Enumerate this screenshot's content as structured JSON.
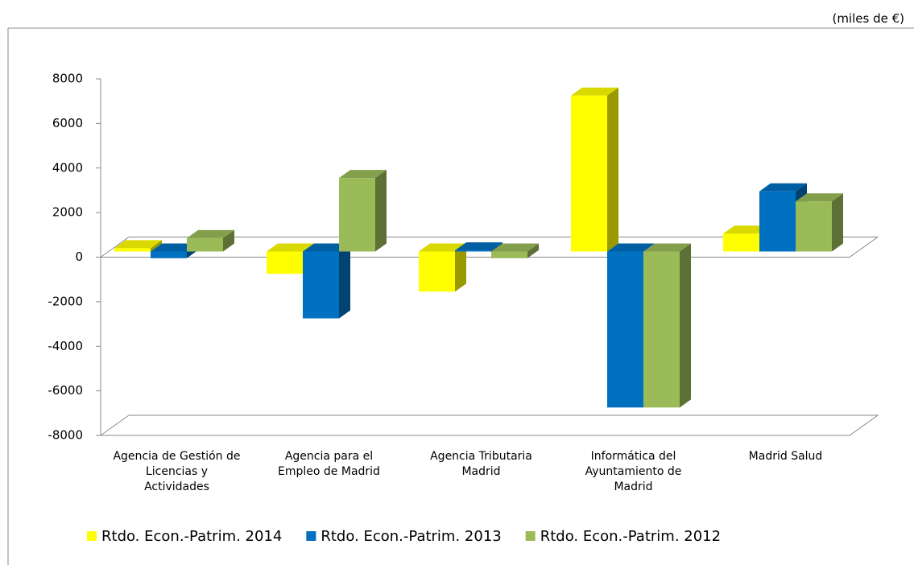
{
  "chart_data": {
    "type": "bar3d",
    "unit_note": "(miles de €)",
    "categories": [
      "Agencia de Gestión de Licencias y Actividades",
      "Agencia para el Empleo de Madrid",
      "Agencia Tributaria Madrid",
      "Informática del Ayuntamiento de Madrid",
      "Madrid Salud"
    ],
    "series": [
      {
        "name": "Rtdo. Econ.-Patrim. 2014",
        "color": "#ffff00",
        "values": [
          150,
          -1000,
          -1800,
          7000,
          800
        ]
      },
      {
        "name": "Rtdo. Econ.-Patrim. 2013",
        "color": "#0070c0",
        "values": [
          -300,
          -3000,
          50,
          -7000,
          2700
        ]
      },
      {
        "name": "Rtdo. Econ.-Patrim. 2012",
        "color": "#9bbb59",
        "values": [
          600,
          3300,
          -300,
          -7000,
          2250
        ]
      }
    ],
    "ylim": [
      -8000,
      8000
    ],
    "yticks": [
      -8000,
      -6000,
      -4000,
      -2000,
      0,
      2000,
      4000,
      6000,
      8000
    ],
    "legend": "bottom"
  }
}
